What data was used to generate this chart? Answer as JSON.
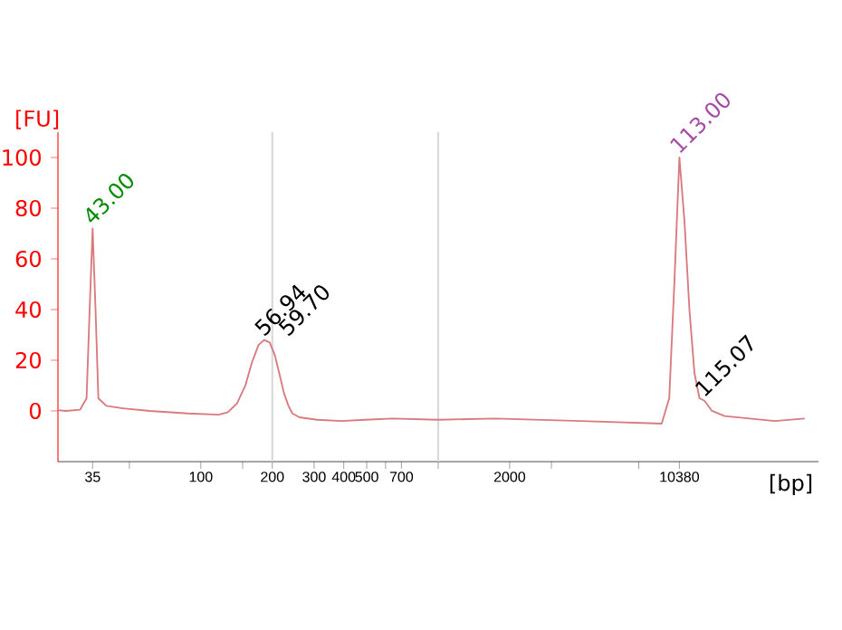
{
  "chart_data": {
    "type": "line",
    "xlabel": "[bp]",
    "ylabel": "[FU]",
    "xlim": [
      25,
      40000
    ],
    "ylim": [
      -20,
      110
    ],
    "xticks": [
      35,
      {
        "value": 50,
        "label": null
      },
      100,
      {
        "value": 150,
        "label": null
      },
      200,
      300,
      400,
      500,
      {
        "value": 600,
        "label": null
      },
      700,
      {
        "value": 1000,
        "label": null
      },
      2000,
      {
        "value": 3000,
        "label": null
      },
      {
        "value": 7000,
        "label": null
      },
      10380
    ],
    "yticks": [
      0,
      20,
      40,
      60,
      80,
      100
    ],
    "grid": false,
    "log": "x",
    "marker": "none",
    "line_style": "solid",
    "ref_lines": [
      {
        "axis": "x",
        "value": 200,
        "color": "#d9d9d9"
      },
      {
        "axis": "x",
        "value": 1000,
        "color": "#d9d9d9"
      }
    ],
    "x": [
      25,
      27,
      31,
      33,
      34,
      35,
      36,
      37,
      40,
      47,
      61,
      88,
      119,
      130,
      142,
      154,
      164,
      175,
      185,
      195,
      205,
      215,
      224,
      234,
      243,
      260,
      309,
      391,
      493,
      641,
      1000,
      1733,
      4000,
      8740,
      9406,
      9880,
      10380,
      10900,
      11440,
      12010,
      12610,
      13240,
      14240,
      16080,
      20510,
      26150,
      35000
    ],
    "series": [
      {
        "color": "#d97b7e",
        "values": [
          0.3,
          0,
          0.5,
          5,
          40,
          72,
          40,
          5,
          2,
          1,
          0,
          -1,
          -1.5,
          -0.5,
          3,
          10,
          19,
          26,
          28,
          27,
          22,
          14,
          7,
          2,
          -1,
          -2.5,
          -3.5,
          -4,
          -3.5,
          -3,
          -3.5,
          -3,
          -4,
          -5,
          5,
          50,
          100,
          75,
          40,
          15,
          5,
          4,
          0,
          -2,
          -3,
          -4,
          -3
        ]
      }
    ],
    "annotations": [
      {
        "text": "43.00",
        "x": 35,
        "y": 72
      },
      {
        "text": "56.94",
        "x": 185,
        "y": 28
      },
      {
        "text": "59.70",
        "x": 185,
        "y": 28
      },
      {
        "text": "113.00",
        "x": 10380,
        "y": 100
      },
      {
        "text": "115.07",
        "x": 13240,
        "y": 4
      }
    ]
  }
}
